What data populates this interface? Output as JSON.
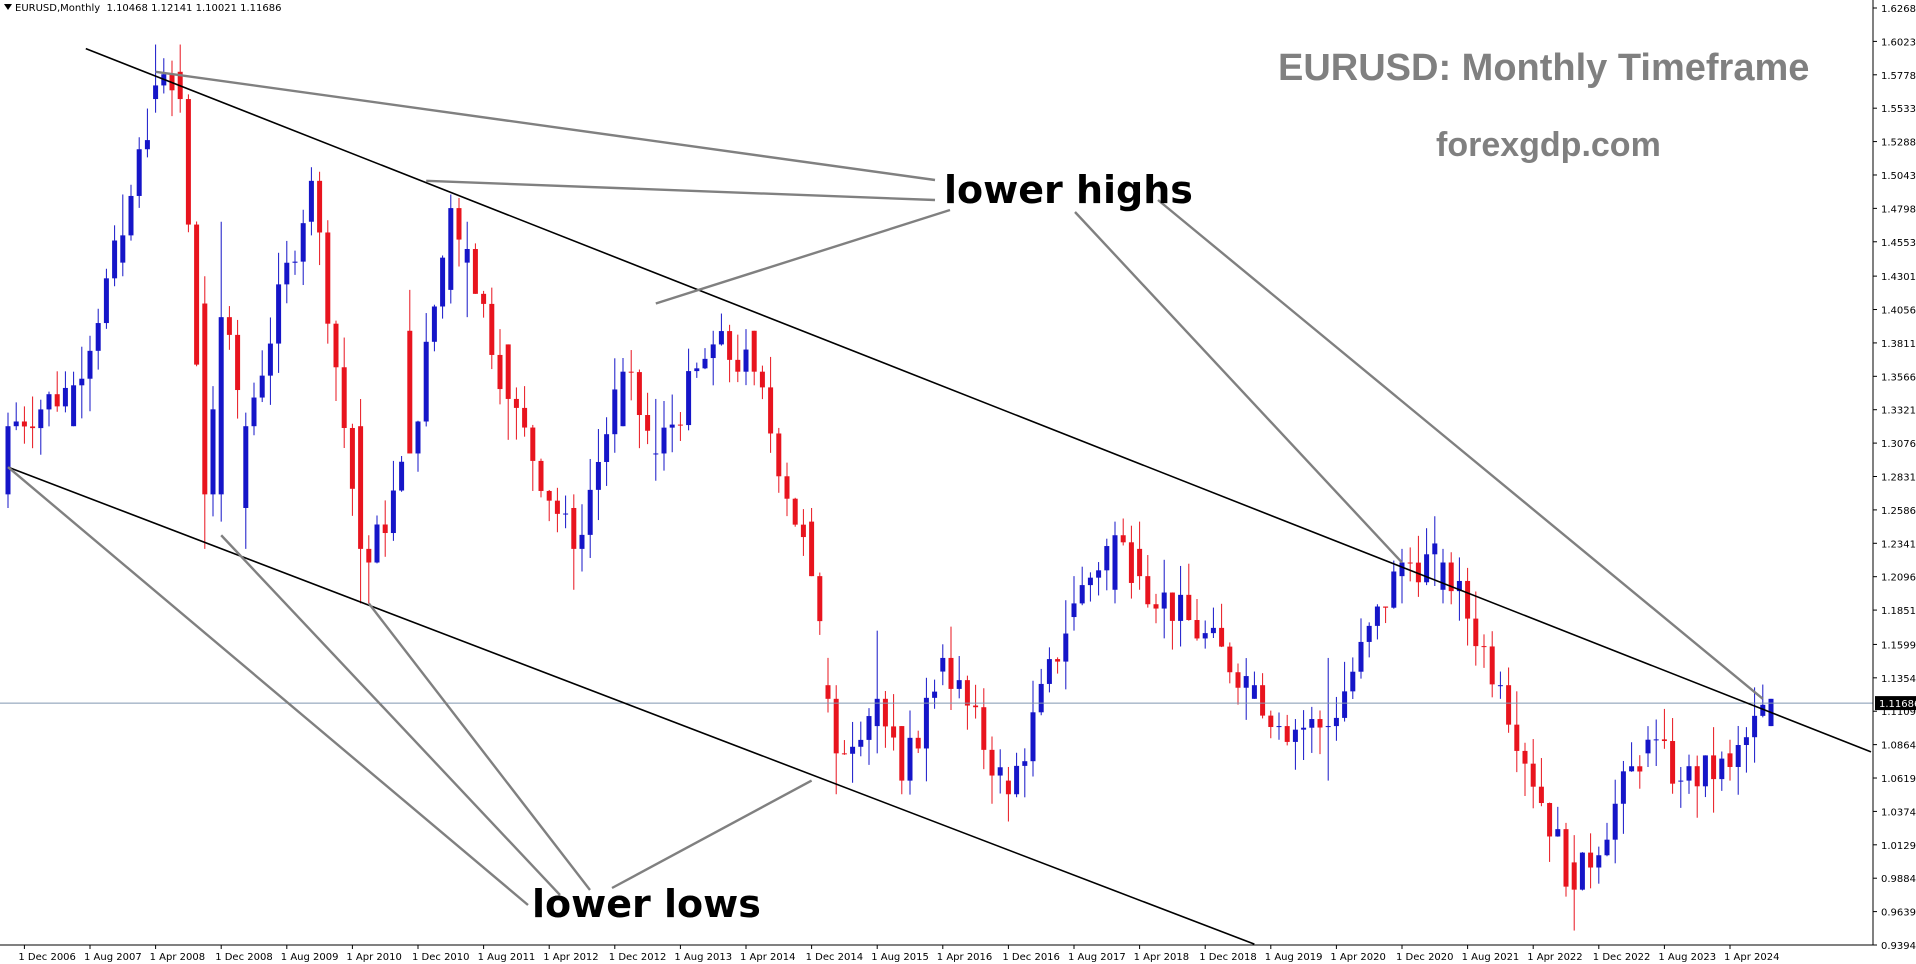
{
  "header": {
    "symbol_label": "EURUSD,Monthly",
    "ohlc": "1.10468 1.12141 1.10021 1.11686"
  },
  "annotations": {
    "title": "EURUSD: Monthly Timeframe",
    "website": "forexgdp.com",
    "lower_highs": "lower highs",
    "lower_lows": "lower lows"
  },
  "colors": {
    "bull": "#1515c8",
    "bear": "#e8141e",
    "trendline": "#000000",
    "pointer": "#808080",
    "price_line": "#8096b0"
  },
  "chart_data": {
    "type": "candlestick",
    "symbol": "EURUSD",
    "timeframe": "Monthly",
    "current_price": 1.11686,
    "ylim": [
      0.9394,
      1.6268
    ],
    "y_ticks": [
      "1.62680",
      "1.60230",
      "1.57780",
      "1.55330",
      "1.52880",
      "1.50430",
      "1.47980",
      "1.45530",
      "1.43010",
      "1.40560",
      "1.38110",
      "1.35660",
      "1.33210",
      "1.30760",
      "1.28310",
      "1.25860",
      "1.23410",
      "1.20960",
      "1.18510",
      "1.15990",
      "1.13540",
      "1.11090",
      "1.08640",
      "1.06190",
      "1.03740",
      "1.01290",
      "0.98840",
      "0.96390",
      "0.93940"
    ],
    "x_ticks": [
      "1 Dec 2006",
      "1 Aug 2007",
      "1 Apr 2008",
      "1 Dec 2008",
      "1 Aug 2009",
      "1 Apr 2010",
      "1 Dec 2010",
      "1 Aug 2011",
      "1 Apr 2012",
      "1 Dec 2012",
      "1 Aug 2013",
      "1 Apr 2014",
      "1 Dec 2014",
      "1 Aug 2015",
      "1 Apr 2016",
      "1 Dec 2016",
      "1 Aug 2017",
      "1 Apr 2018",
      "1 Dec 2018",
      "1 Aug 2019",
      "1 Apr 2020",
      "1 Dec 2020",
      "1 Aug 2021",
      "1 Apr 2022",
      "1 Dec 2022",
      "1 Aug 2023",
      "1 Apr 2024"
    ],
    "start_date": "2006-10",
    "anchors": [
      [
        "2006-10",
        1.27,
        1.33,
        1.26,
        1.32
      ],
      [
        "2007-06",
        1.32,
        1.36,
        1.32,
        1.35
      ],
      [
        "2007-12",
        1.44,
        1.49,
        1.43,
        1.46
      ],
      [
        "2008-04",
        1.56,
        1.6,
        1.55,
        1.57
      ],
      [
        "2008-07",
        1.58,
        1.6,
        1.55,
        1.56
      ],
      [
        "2008-10",
        1.41,
        1.43,
        1.23,
        1.27
      ],
      [
        "2008-12",
        1.27,
        1.47,
        1.25,
        1.4
      ],
      [
        "2009-03",
        1.26,
        1.33,
        1.23,
        1.32
      ],
      [
        "2009-11",
        1.47,
        1.51,
        1.46,
        1.5
      ],
      [
        "2010-05",
        1.32,
        1.34,
        1.19,
        1.23
      ],
      [
        "2010-06",
        1.23,
        1.24,
        1.19,
        1.22
      ],
      [
        "2010-11",
        1.39,
        1.42,
        1.3,
        1.3
      ],
      [
        "2011-04",
        1.42,
        1.49,
        1.41,
        1.48
      ],
      [
        "2011-06",
        1.44,
        1.47,
        1.4,
        1.45
      ],
      [
        "2011-11",
        1.38,
        1.38,
        1.31,
        1.34
      ],
      [
        "2012-07",
        1.26,
        1.27,
        1.2,
        1.23
      ],
      [
        "2013-01",
        1.32,
        1.37,
        1.32,
        1.36
      ],
      [
        "2013-05",
        1.3,
        1.34,
        1.28,
        1.3
      ],
      [
        "2013-12",
        1.37,
        1.39,
        1.35,
        1.38
      ],
      [
        "2014-05",
        1.39,
        1.39,
        1.35,
        1.36
      ],
      [
        "2014-12",
        1.25,
        1.26,
        1.21,
        1.21
      ],
      [
        "2015-02",
        1.13,
        1.15,
        1.11,
        1.12
      ],
      [
        "2015-03",
        1.12,
        1.13,
        1.05,
        1.08
      ],
      [
        "2015-08",
        1.1,
        1.17,
        1.08,
        1.12
      ],
      [
        "2015-11",
        1.1,
        1.1,
        1.05,
        1.06
      ],
      [
        "2016-04",
        1.14,
        1.16,
        1.13,
        1.15
      ],
      [
        "2016-12",
        1.06,
        1.07,
        1.03,
        1.05
      ],
      [
        "2017-08",
        1.18,
        1.21,
        1.17,
        1.19
      ],
      [
        "2018-01",
        1.2,
        1.25,
        1.19,
        1.24
      ],
      [
        "2018-04",
        1.23,
        1.25,
        1.2,
        1.21
      ],
      [
        "2019-06",
        1.12,
        1.14,
        1.12,
        1.13
      ],
      [
        "2019-09",
        1.1,
        1.11,
        1.09,
        1.1
      ],
      [
        "2020-03",
        1.1,
        1.15,
        1.06,
        1.1
      ],
      [
        "2020-12",
        1.21,
        1.23,
        1.19,
        1.22
      ],
      [
        "2021-05",
        1.2,
        1.23,
        1.19,
        1.22
      ],
      [
        "2021-12",
        1.13,
        1.14,
        1.12,
        1.13
      ],
      [
        "2022-09",
        1.0,
        1.02,
        0.95,
        0.98
      ],
      [
        "2023-06",
        1.08,
        1.1,
        1.07,
        1.09
      ],
      [
        "2023-10",
        1.06,
        1.07,
        1.04,
        1.06
      ],
      [
        "2024-04",
        1.08,
        1.09,
        1.06,
        1.07
      ],
      [
        "2024-09",
        1.1,
        1.12,
        1.1,
        1.12
      ]
    ],
    "trendlines": [
      {
        "name": "upper-channel",
        "points": [
          [
            "2007-02",
            1.61
          ],
          [
            "2024-09",
            1.11
          ]
        ],
        "extended": true
      },
      {
        "name": "lower-channel",
        "points": [
          [
            "2006-10",
            1.29
          ],
          [
            "2019-06",
            0.94
          ]
        ],
        "extended": false
      }
    ],
    "grid": false,
    "legend": "none"
  }
}
